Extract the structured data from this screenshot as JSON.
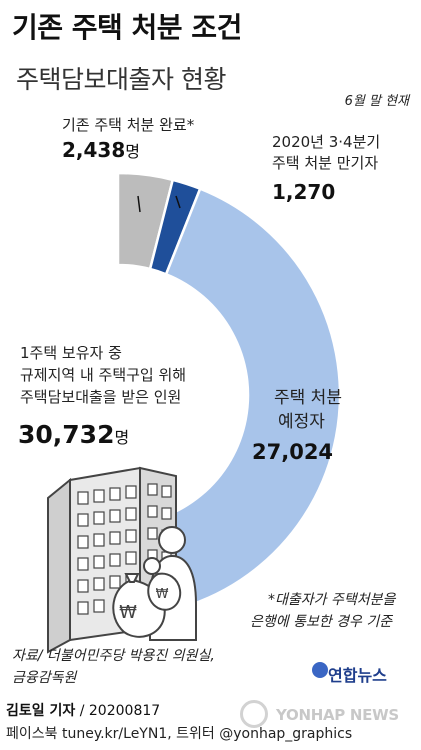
{
  "title": "기존 주택 처분 조건",
  "subtitle": "주택담보대출자 현황",
  "date_note": "6월 말 현재",
  "chart_data": {
    "type": "pie",
    "title": "기존 주택 처분 조건",
    "subtitle": "주택담보대출자 현황",
    "total": 30732,
    "categories": [
      "기존 주택 처분 완료*",
      "2020년 3·4분기 주택 처분 만기자",
      "주택 처분 예정자"
    ],
    "values": [
      2438,
      1270,
      27024
    ],
    "colors": [
      "#bcbcbc",
      "#1f4f9a",
      "#a8c4ea"
    ]
  },
  "labels": {
    "completed_line": "기존 주택 처분 완료*",
    "completed_value": "2,438",
    "expiring_line1": "2020년 3·4분기",
    "expiring_line2": "주택 처분 만기자",
    "expiring_value": "1,270",
    "planned_line1": "주택 처분",
    "planned_line2": "예정자",
    "planned_value": "27,024",
    "unit": "명",
    "total_line1": "1주택 보유자 중",
    "total_line2": "규제지역 내 주택구입 위해",
    "total_line3": "주택담보대출을 받은 인원",
    "total_value": "30,732"
  },
  "footnote_line1": "*대출자가 주택처분을",
  "footnote_line2": "은행에 통보한 경우 기준",
  "source_line1": "자료/ 더불어민주당 박용진 의원실,",
  "source_line2": "금융감독원",
  "brand": "연합뉴스",
  "reporter_name": "김토일 기자",
  "reporter_date": "/ 20200817",
  "social": "페이스북 tuney.kr/LeYN1, 트위터 @yonhap_graphics",
  "watermark": "YONHAP NEWS",
  "icons": [
    "apartment-building-icon",
    "person-with-money-bags-icon",
    "won-coin-bag-icon"
  ]
}
